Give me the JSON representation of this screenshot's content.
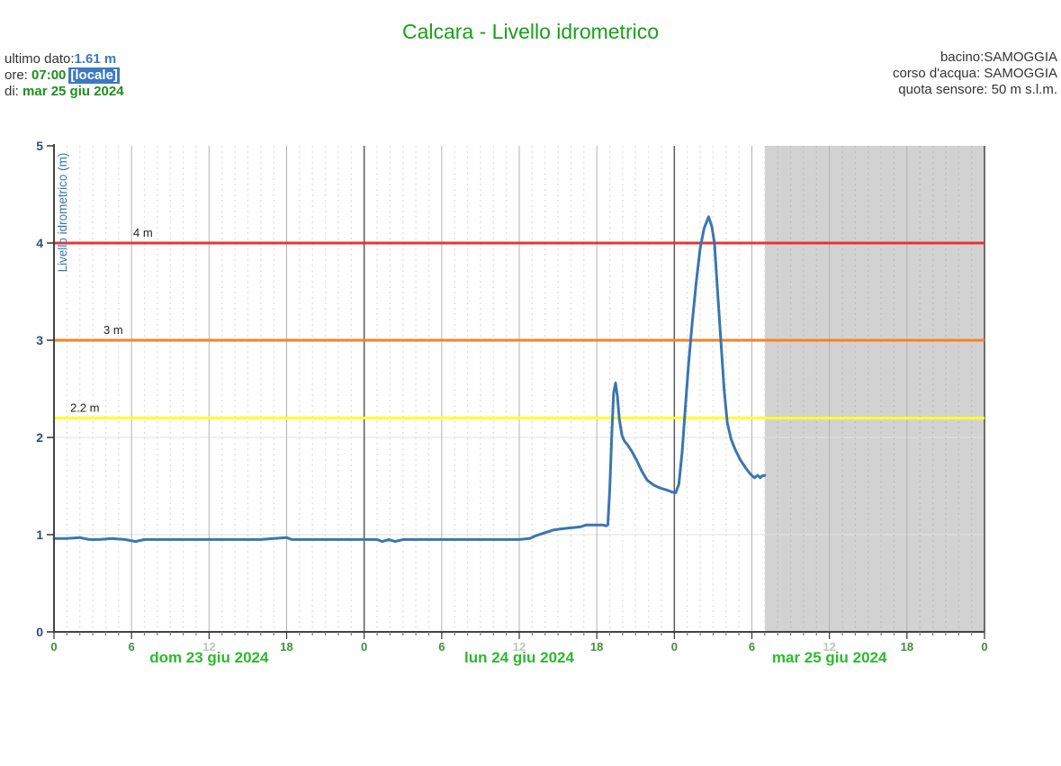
{
  "header": {
    "title": "Calcara - Livello idrometrico"
  },
  "info_left": {
    "last_label": "ultimo dato:",
    "last_value": "1.61 m",
    "time_label": "ore: ",
    "time_value": "07:00",
    "time_badge": "[locale]",
    "date_label": "di: ",
    "date_value": "mar 25 giu 2024"
  },
  "info_right": {
    "basin_label": "bacino:",
    "basin_value": "SAMOGGIA",
    "river_label": "corso d'acqua: ",
    "river_value": "SAMOGGIA",
    "sensor_label": "quota sensore: ",
    "sensor_value": "50 m s.l.m."
  },
  "colors": {
    "title_green": "#18a018",
    "value_blue": "#3c79c0",
    "value_green": "#1d8f1d",
    "badge_bg": "#3c79c0",
    "series_blue": "#3b76af",
    "axis_dark": "#444444",
    "day_line": "#5a5a5a",
    "sixhour_line": "#b3b3b3",
    "hour_dash": "#dedede",
    "hour_dash_forecast": "#bdbdbd",
    "hgrid": "#e3e3e3",
    "forecast_gray": "#d2d2d2",
    "hour_label_green": "#3f8f3f",
    "hour_label_pale": "#b7cbb7",
    "day_label_green": "#2eb82e",
    "y_label_blue": "#2e5077",
    "threshold_text": "#222222"
  },
  "chart_data": {
    "type": "line",
    "title": "Calcara - Livello idrometrico",
    "ylabel": "Livello idrometrico (m)",
    "ylim": [
      0,
      5
    ],
    "xlim_hours": [
      0,
      72
    ],
    "grid": true,
    "y_ticks": [
      0,
      1,
      2,
      3,
      4,
      5
    ],
    "days": [
      "dom 23 giu 2024",
      "lun 24 giu 2024",
      "mar 25 giu 2024"
    ],
    "hour_labels": [
      "0",
      "6",
      "12",
      "18"
    ],
    "final_hour_label": "0",
    "thresholds": [
      {
        "value": 2.2,
        "label": "2.2 m",
        "color": "#ffff2e"
      },
      {
        "value": 3,
        "label": "3 m",
        "color": "#f5822a"
      },
      {
        "value": 4,
        "label": "4 m",
        "color": "#e93434"
      }
    ],
    "forecast_region": {
      "start_hour": 55,
      "end_hour": 72
    },
    "series": [
      {
        "name": "Livello idrometrico (m)",
        "color": "#3b76af",
        "points": [
          [
            0,
            0.96
          ],
          [
            1,
            0.96
          ],
          [
            2,
            0.97
          ],
          [
            2.7,
            0.95
          ],
          [
            3.5,
            0.95
          ],
          [
            4.5,
            0.96
          ],
          [
            5.5,
            0.95
          ],
          [
            6.3,
            0.93
          ],
          [
            7,
            0.95
          ],
          [
            8,
            0.95
          ],
          [
            9,
            0.95
          ],
          [
            10,
            0.95
          ],
          [
            11,
            0.95
          ],
          [
            12,
            0.95
          ],
          [
            13,
            0.95
          ],
          [
            14,
            0.95
          ],
          [
            15,
            0.95
          ],
          [
            16,
            0.95
          ],
          [
            17,
            0.96
          ],
          [
            18,
            0.97
          ],
          [
            18.4,
            0.95
          ],
          [
            19,
            0.95
          ],
          [
            20,
            0.95
          ],
          [
            21,
            0.95
          ],
          [
            22,
            0.95
          ],
          [
            23,
            0.95
          ],
          [
            24,
            0.95
          ],
          [
            25,
            0.95
          ],
          [
            25.4,
            0.93
          ],
          [
            25.9,
            0.95
          ],
          [
            26.4,
            0.93
          ],
          [
            27,
            0.95
          ],
          [
            28,
            0.95
          ],
          [
            29,
            0.95
          ],
          [
            30,
            0.95
          ],
          [
            31,
            0.95
          ],
          [
            32,
            0.95
          ],
          [
            33,
            0.95
          ],
          [
            34,
            0.95
          ],
          [
            35,
            0.95
          ],
          [
            36,
            0.95
          ],
          [
            36.8,
            0.96
          ],
          [
            37.3,
            0.99
          ],
          [
            38,
            1.02
          ],
          [
            38.7,
            1.05
          ],
          [
            39.3,
            1.06
          ],
          [
            40,
            1.07
          ],
          [
            40.7,
            1.08
          ],
          [
            41.2,
            1.1
          ],
          [
            41.9,
            1.1
          ],
          [
            42.5,
            1.1
          ],
          [
            42.7,
            1.09
          ],
          [
            42.85,
            1.1
          ],
          [
            43.0,
            1.45
          ],
          [
            43.15,
            2.0
          ],
          [
            43.3,
            2.45
          ],
          [
            43.45,
            2.56
          ],
          [
            43.6,
            2.42
          ],
          [
            43.75,
            2.18
          ],
          [
            43.95,
            2.02
          ],
          [
            44.15,
            1.96
          ],
          [
            44.35,
            1.93
          ],
          [
            44.7,
            1.86
          ],
          [
            45.1,
            1.76
          ],
          [
            45.5,
            1.65
          ],
          [
            45.9,
            1.56
          ],
          [
            46.4,
            1.51
          ],
          [
            46.9,
            1.48
          ],
          [
            47.4,
            1.46
          ],
          [
            47.8,
            1.44
          ],
          [
            48.1,
            1.43
          ],
          [
            48.35,
            1.52
          ],
          [
            48.6,
            1.85
          ],
          [
            48.85,
            2.3
          ],
          [
            49.1,
            2.75
          ],
          [
            49.4,
            3.2
          ],
          [
            49.7,
            3.6
          ],
          [
            50.0,
            3.95
          ],
          [
            50.3,
            4.15
          ],
          [
            50.65,
            4.27
          ],
          [
            50.9,
            4.17
          ],
          [
            51.1,
            4.0
          ],
          [
            51.35,
            3.5
          ],
          [
            51.6,
            3.0
          ],
          [
            51.85,
            2.5
          ],
          [
            52.1,
            2.15
          ],
          [
            52.4,
            1.98
          ],
          [
            52.7,
            1.88
          ],
          [
            53.1,
            1.77
          ],
          [
            53.5,
            1.69
          ],
          [
            53.9,
            1.62
          ],
          [
            54.2,
            1.585
          ],
          [
            54.45,
            1.61
          ],
          [
            54.65,
            1.585
          ],
          [
            54.8,
            1.605
          ],
          [
            55,
            1.61
          ]
        ]
      }
    ]
  }
}
